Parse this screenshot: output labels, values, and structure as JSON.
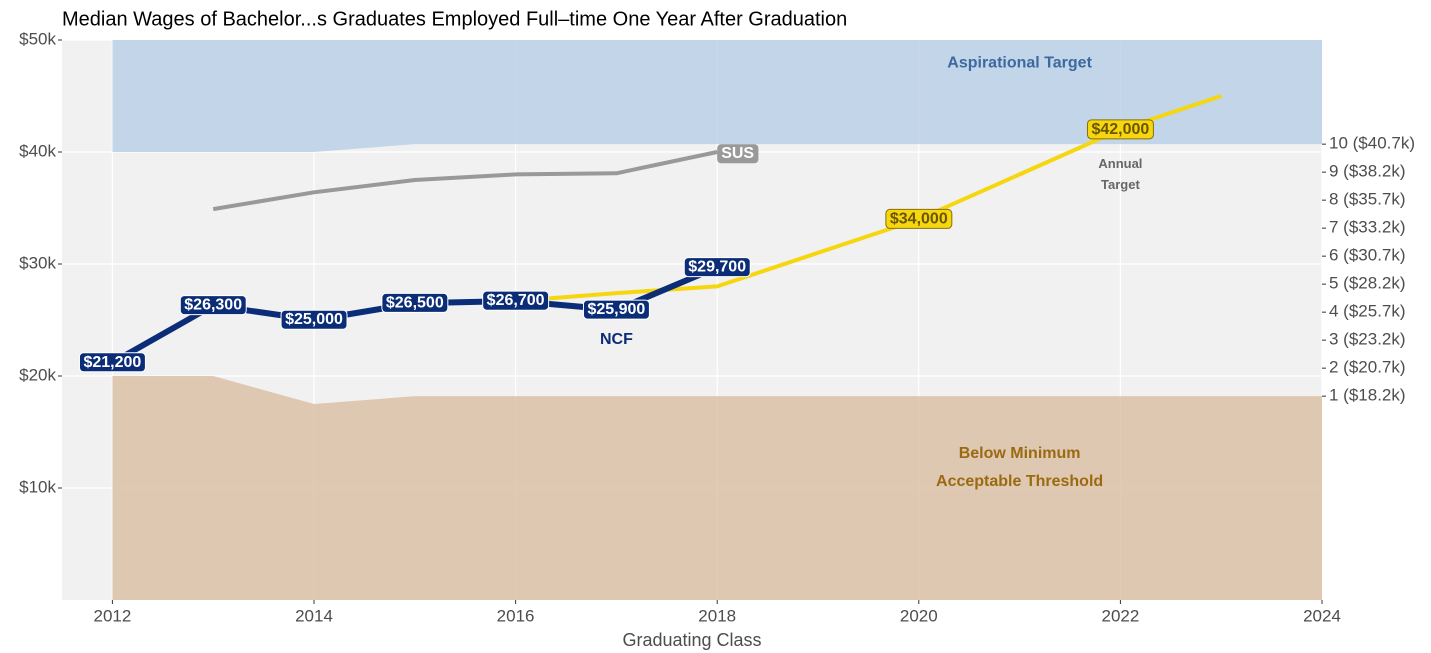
{
  "chart_data": {
    "type": "line",
    "title": "Median Wages of Bachelor...s Graduates Employed Full–time One Year After Graduation",
    "x_label": "Graduating Class",
    "xlim": [
      2011.5,
      2024
    ],
    "xticks": [
      2012,
      2014,
      2016,
      2018,
      2020,
      2022,
      2024
    ],
    "ylim": [
      0,
      50000
    ],
    "yticks": [
      {
        "value": 10000,
        "label": "$10k"
      },
      {
        "value": 20000,
        "label": "$20k"
      },
      {
        "value": 30000,
        "label": "$30k"
      },
      {
        "value": 40000,
        "label": "$40k"
      },
      {
        "value": 50000,
        "label": "$50k"
      }
    ],
    "y2lim": [
      0,
      50000
    ],
    "y2ticks": [
      {
        "value": 18200,
        "label": "1 ($18.2k)"
      },
      {
        "value": 20700,
        "label": "2 ($20.7k)"
      },
      {
        "value": 23200,
        "label": "3 ($23.2k)"
      },
      {
        "value": 25700,
        "label": "4 ($25.7k)"
      },
      {
        "value": 28200,
        "label": "5 ($28.2k)"
      },
      {
        "value": 30700,
        "label": "6 ($30.7k)"
      },
      {
        "value": 33200,
        "label": "7 ($33.2k)"
      },
      {
        "value": 35700,
        "label": "8 ($35.7k)"
      },
      {
        "value": 38200,
        "label": "9 ($38.2k)"
      },
      {
        "value": 40700,
        "label": "10 ($40.7k)"
      }
    ],
    "grid": true,
    "bands": [
      {
        "name": [
          "Aspirational Target"
        ],
        "color": "#b3cbe4",
        "text_color": "#3b6aa0",
        "x": [
          2012,
          2013,
          2014,
          2015,
          2024
        ],
        "lower": [
          40000,
          40000,
          40000,
          40700,
          40700
        ],
        "upper": [
          50000,
          50000,
          50000,
          50000,
          50000
        ]
      },
      {
        "name": [
          "Below Minimum",
          "Acceptable Threshold"
        ],
        "color": "#d8b99c",
        "text_color": "#9a6a10",
        "x": [
          2012,
          2013,
          2014,
          2015,
          2024
        ],
        "lower": [
          0,
          0,
          0,
          0,
          0
        ],
        "upper": [
          20000,
          20000,
          17500,
          18200,
          18200
        ]
      }
    ],
    "series": [
      {
        "name": [
          "SUS"
        ],
        "color": "#999999",
        "x": [
          2013,
          2014,
          2015,
          2016,
          2017,
          2018
        ],
        "values": [
          34900,
          36400,
          37500,
          38000,
          38100,
          40000
        ]
      },
      {
        "name": [
          "Annual",
          "Target"
        ],
        "color": "#f5d60f",
        "x": [
          2015,
          2016,
          2017,
          2018,
          2020,
          2022,
          2023
        ],
        "values": [
          26500,
          26700,
          27400,
          28000,
          34000,
          42000,
          45000
        ],
        "value_labels": [
          null,
          null,
          null,
          null,
          "$34,000",
          "$42,000",
          null
        ]
      },
      {
        "name": [
          "NCF"
        ],
        "color": "#0b2d78",
        "x": [
          2012,
          2013,
          2014,
          2015,
          2016,
          2017,
          2018
        ],
        "values": [
          21200,
          26300,
          25000,
          26500,
          26700,
          25900,
          29700
        ],
        "value_labels": [
          "$21,200",
          "$26,300",
          "$25,000",
          "$26,500",
          "$26,700",
          "$25,900",
          "$29,700"
        ]
      }
    ]
  }
}
